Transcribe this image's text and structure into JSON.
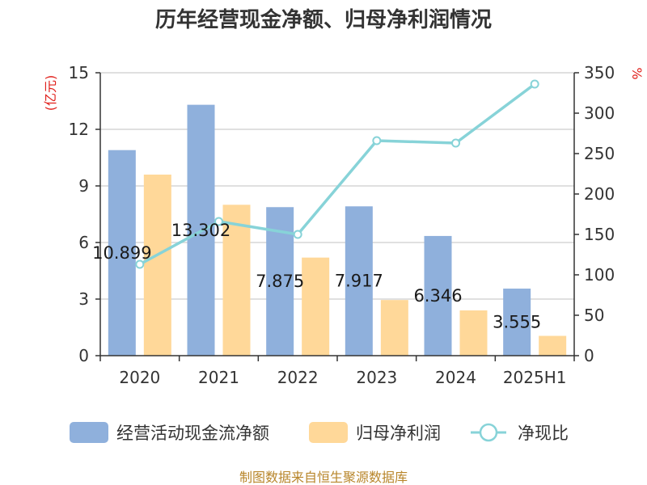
{
  "chart_data": {
    "type": "bar",
    "title": "历年经营现金净额、归母净利润情况",
    "categories": [
      "2020",
      "2021",
      "2022",
      "2023",
      "2024",
      "2025H1"
    ],
    "y_left": {
      "unit": "(亿元)",
      "range": [
        0,
        15
      ],
      "ticks": [
        0,
        3,
        6,
        9,
        12,
        15
      ]
    },
    "y_right": {
      "unit": "%",
      "range": [
        0,
        350
      ],
      "ticks": [
        0,
        50,
        100,
        150,
        200,
        250,
        300,
        350
      ]
    },
    "series": [
      {
        "name": "经营活动现金流净额",
        "type": "bar",
        "axis": "left",
        "color": "#8fb0dc",
        "values": [
          10.899,
          13.302,
          7.875,
          7.917,
          6.346,
          3.555
        ],
        "labels": [
          "10.899",
          "13.302",
          "7.875",
          "7.917",
          "6.346",
          "3.555"
        ]
      },
      {
        "name": "归母净利润",
        "type": "bar",
        "axis": "left",
        "color": "#ffd899",
        "values": [
          9.6,
          8.0,
          5.2,
          2.95,
          2.4,
          1.05
        ]
      },
      {
        "name": "净现比",
        "type": "line",
        "axis": "right",
        "color": "#87d3d8",
        "values": [
          113,
          166,
          150,
          266,
          263,
          336
        ]
      }
    ],
    "grid": true,
    "legend": "bottom"
  },
  "source": "制图数据来自恒生聚源数据库"
}
